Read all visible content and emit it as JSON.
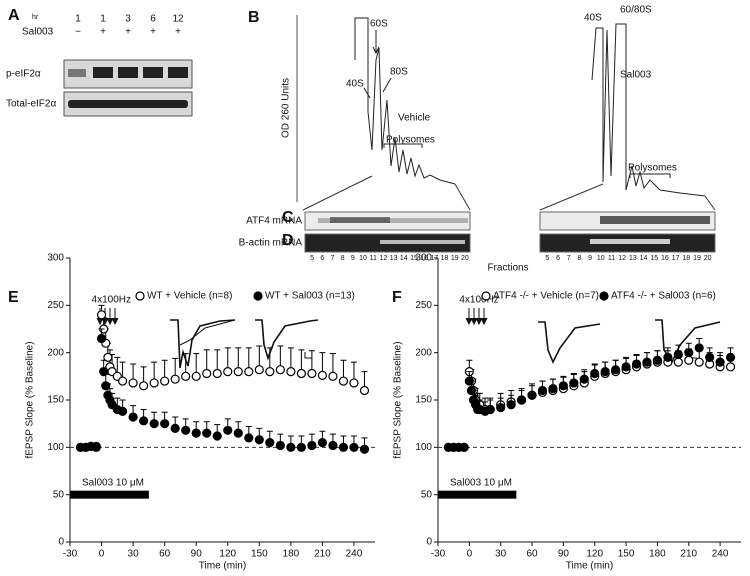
{
  "panel_labels": [
    "A",
    "B",
    "C",
    "D",
    "E",
    "F"
  ],
  "blot": {
    "hr_label": "hr",
    "hours": [
      "1",
      "1",
      "3",
      "6",
      "12"
    ],
    "treatment_label": "Sal003",
    "treatment": [
      "−",
      "+",
      "+",
      "+",
      "+"
    ],
    "rows": [
      "p-eIF2α",
      "Total-eIF2α"
    ]
  },
  "profiles": {
    "y_label": "OD 260 Units",
    "vehicle": {
      "name": "Vehicle",
      "peaks": [
        "40S",
        "60S",
        "80S"
      ],
      "polysomes": "Polysomes"
    },
    "sal003": {
      "name": "Sal003",
      "peaks": [
        "40S",
        "60/80S"
      ],
      "polysomes": "Polysomes"
    }
  },
  "gels": {
    "rows": [
      "ATF4 mRNA",
      "B-actin mRNA"
    ],
    "fractions": [
      "5",
      "6",
      "7",
      "8",
      "9",
      "10",
      "11",
      "12",
      "13",
      "14",
      "15",
      "16",
      "17",
      "18",
      "19",
      "20"
    ],
    "x_label": "Fractions"
  },
  "chart_data": [
    {
      "type": "scatter",
      "x_label": "Time (min)",
      "y_label": "fEPSP Slope (% Baseline)",
      "annotation": "4x100Hz",
      "xlim": [
        -30,
        260
      ],
      "xticks": [
        -30,
        0,
        30,
        60,
        90,
        120,
        150,
        180,
        210,
        240
      ],
      "ylim": [
        0,
        300
      ],
      "yticks": [
        0,
        50,
        100,
        150,
        200,
        250,
        300
      ],
      "reference_line": 100,
      "drug_bar": {
        "label": "Sal003 10 μM",
        "start": -30,
        "end": 45,
        "level": 50
      },
      "x": [
        -20,
        -15,
        -10,
        -5,
        0,
        2,
        4,
        6,
        8,
        10,
        15,
        20,
        30,
        40,
        50,
        60,
        70,
        80,
        90,
        100,
        110,
        120,
        130,
        140,
        150,
        160,
        170,
        180,
        190,
        200,
        210,
        220,
        230,
        240,
        250
      ],
      "series": [
        {
          "name": "WT + Vehicle (n=8)",
          "color": "#000000",
          "marker": "open",
          "values": [
            100,
            100,
            101,
            101,
            240,
            225,
            210,
            195,
            185,
            180,
            175,
            170,
            168,
            165,
            168,
            170,
            172,
            175,
            175,
            178,
            178,
            180,
            180,
            180,
            182,
            180,
            182,
            180,
            178,
            178,
            176,
            175,
            170,
            168,
            160
          ],
          "errors": [
            2,
            2,
            2,
            2,
            10,
            12,
            15,
            15,
            18,
            18,
            20,
            20,
            20,
            20,
            22,
            22,
            22,
            24,
            24,
            25,
            25,
            25,
            25,
            25,
            25,
            25,
            25,
            25,
            25,
            24,
            24,
            24,
            22,
            22,
            20
          ]
        },
        {
          "name": "WT + Sal003 (n=13)",
          "color": "#000000",
          "marker": "filled",
          "values": [
            100,
            100,
            101,
            100,
            215,
            180,
            165,
            155,
            150,
            145,
            140,
            138,
            132,
            128,
            125,
            125,
            120,
            118,
            115,
            115,
            112,
            118,
            115,
            110,
            108,
            105,
            102,
            100,
            100,
            102,
            105,
            102,
            100,
            100,
            98
          ],
          "errors": [
            2,
            2,
            2,
            2,
            10,
            12,
            12,
            12,
            12,
            12,
            12,
            12,
            12,
            12,
            12,
            12,
            12,
            12,
            12,
            12,
            12,
            12,
            12,
            12,
            12,
            12,
            12,
            12,
            12,
            12,
            12,
            12,
            12,
            12,
            12
          ]
        }
      ]
    },
    {
      "type": "scatter",
      "x_label": "Time (min)",
      "y_label": "fEPSP Slope (% Baseline)",
      "annotation": "4x100Hz",
      "xlim": [
        -30,
        260
      ],
      "xticks": [
        -30,
        0,
        30,
        60,
        90,
        120,
        150,
        180,
        210,
        240
      ],
      "ylim": [
        0,
        300
      ],
      "yticks": [
        0,
        50,
        100,
        150,
        200,
        250,
        300
      ],
      "reference_line": 100,
      "drug_bar": {
        "label": "Sal003 10 μM",
        "start": -30,
        "end": 45,
        "level": 50
      },
      "x": [
        -20,
        -15,
        -10,
        -5,
        0,
        2,
        4,
        6,
        8,
        10,
        15,
        20,
        30,
        40,
        50,
        60,
        70,
        80,
        90,
        100,
        110,
        120,
        130,
        140,
        150,
        160,
        170,
        180,
        190,
        200,
        210,
        220,
        230,
        240,
        250
      ],
      "series": [
        {
          "name": "ATF4 -/- + Vehicle (n=7)",
          "color": "#000000",
          "marker": "open",
          "values": [
            100,
            100,
            100,
            100,
            180,
            170,
            160,
            150,
            145,
            145,
            140,
            140,
            145,
            148,
            150,
            155,
            158,
            160,
            162,
            165,
            168,
            175,
            178,
            180,
            182,
            185,
            188,
            190,
            190,
            190,
            192,
            190,
            188,
            185,
            185
          ],
          "errors": [
            2,
            2,
            2,
            2,
            12,
            12,
            12,
            12,
            12,
            12,
            12,
            12,
            12,
            12,
            12,
            12,
            12,
            12,
            12,
            12,
            12,
            12,
            12,
            12,
            12,
            12,
            12,
            12,
            12,
            12,
            12,
            12,
            12,
            12,
            12
          ]
        },
        {
          "name": "ATF4 -/- + Sal003 (n=6)",
          "color": "#000000",
          "marker": "filled",
          "values": [
            100,
            100,
            100,
            100,
            170,
            160,
            150,
            145,
            140,
            140,
            138,
            140,
            142,
            145,
            150,
            155,
            160,
            162,
            165,
            168,
            172,
            178,
            180,
            182,
            185,
            188,
            190,
            192,
            195,
            198,
            200,
            205,
            195,
            190,
            195
          ],
          "errors": [
            2,
            2,
            2,
            2,
            10,
            10,
            10,
            10,
            10,
            10,
            10,
            10,
            10,
            10,
            10,
            10,
            10,
            10,
            10,
            10,
            10,
            10,
            10,
            10,
            10,
            10,
            10,
            10,
            10,
            10,
            10,
            10,
            10,
            10,
            10
          ]
        }
      ]
    }
  ]
}
